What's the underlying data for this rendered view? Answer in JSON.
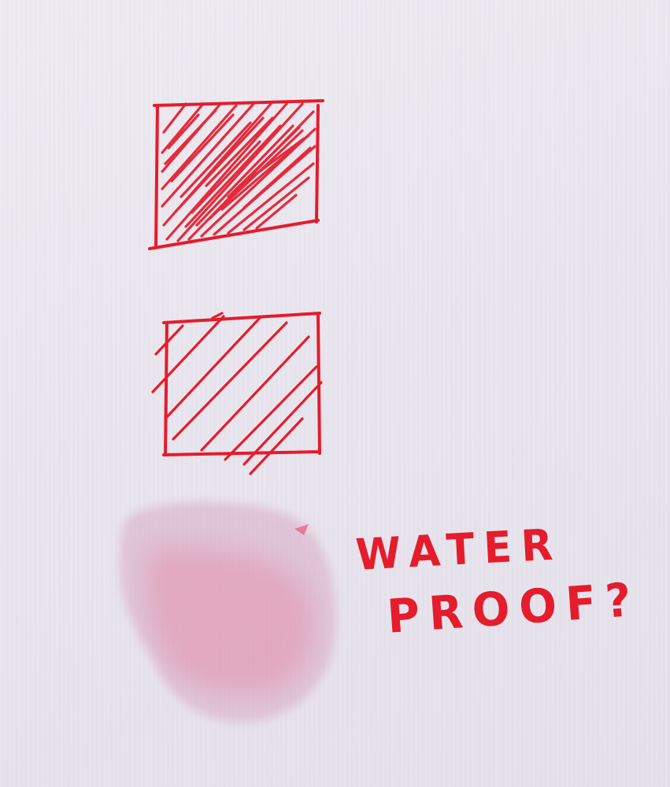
{
  "handwriting": {
    "line1": "WATER",
    "line2": "PROOF?"
  },
  "colors": {
    "ink": "#e41c2c",
    "stain": "#e08aa4",
    "paper": "#ebe7ef"
  }
}
